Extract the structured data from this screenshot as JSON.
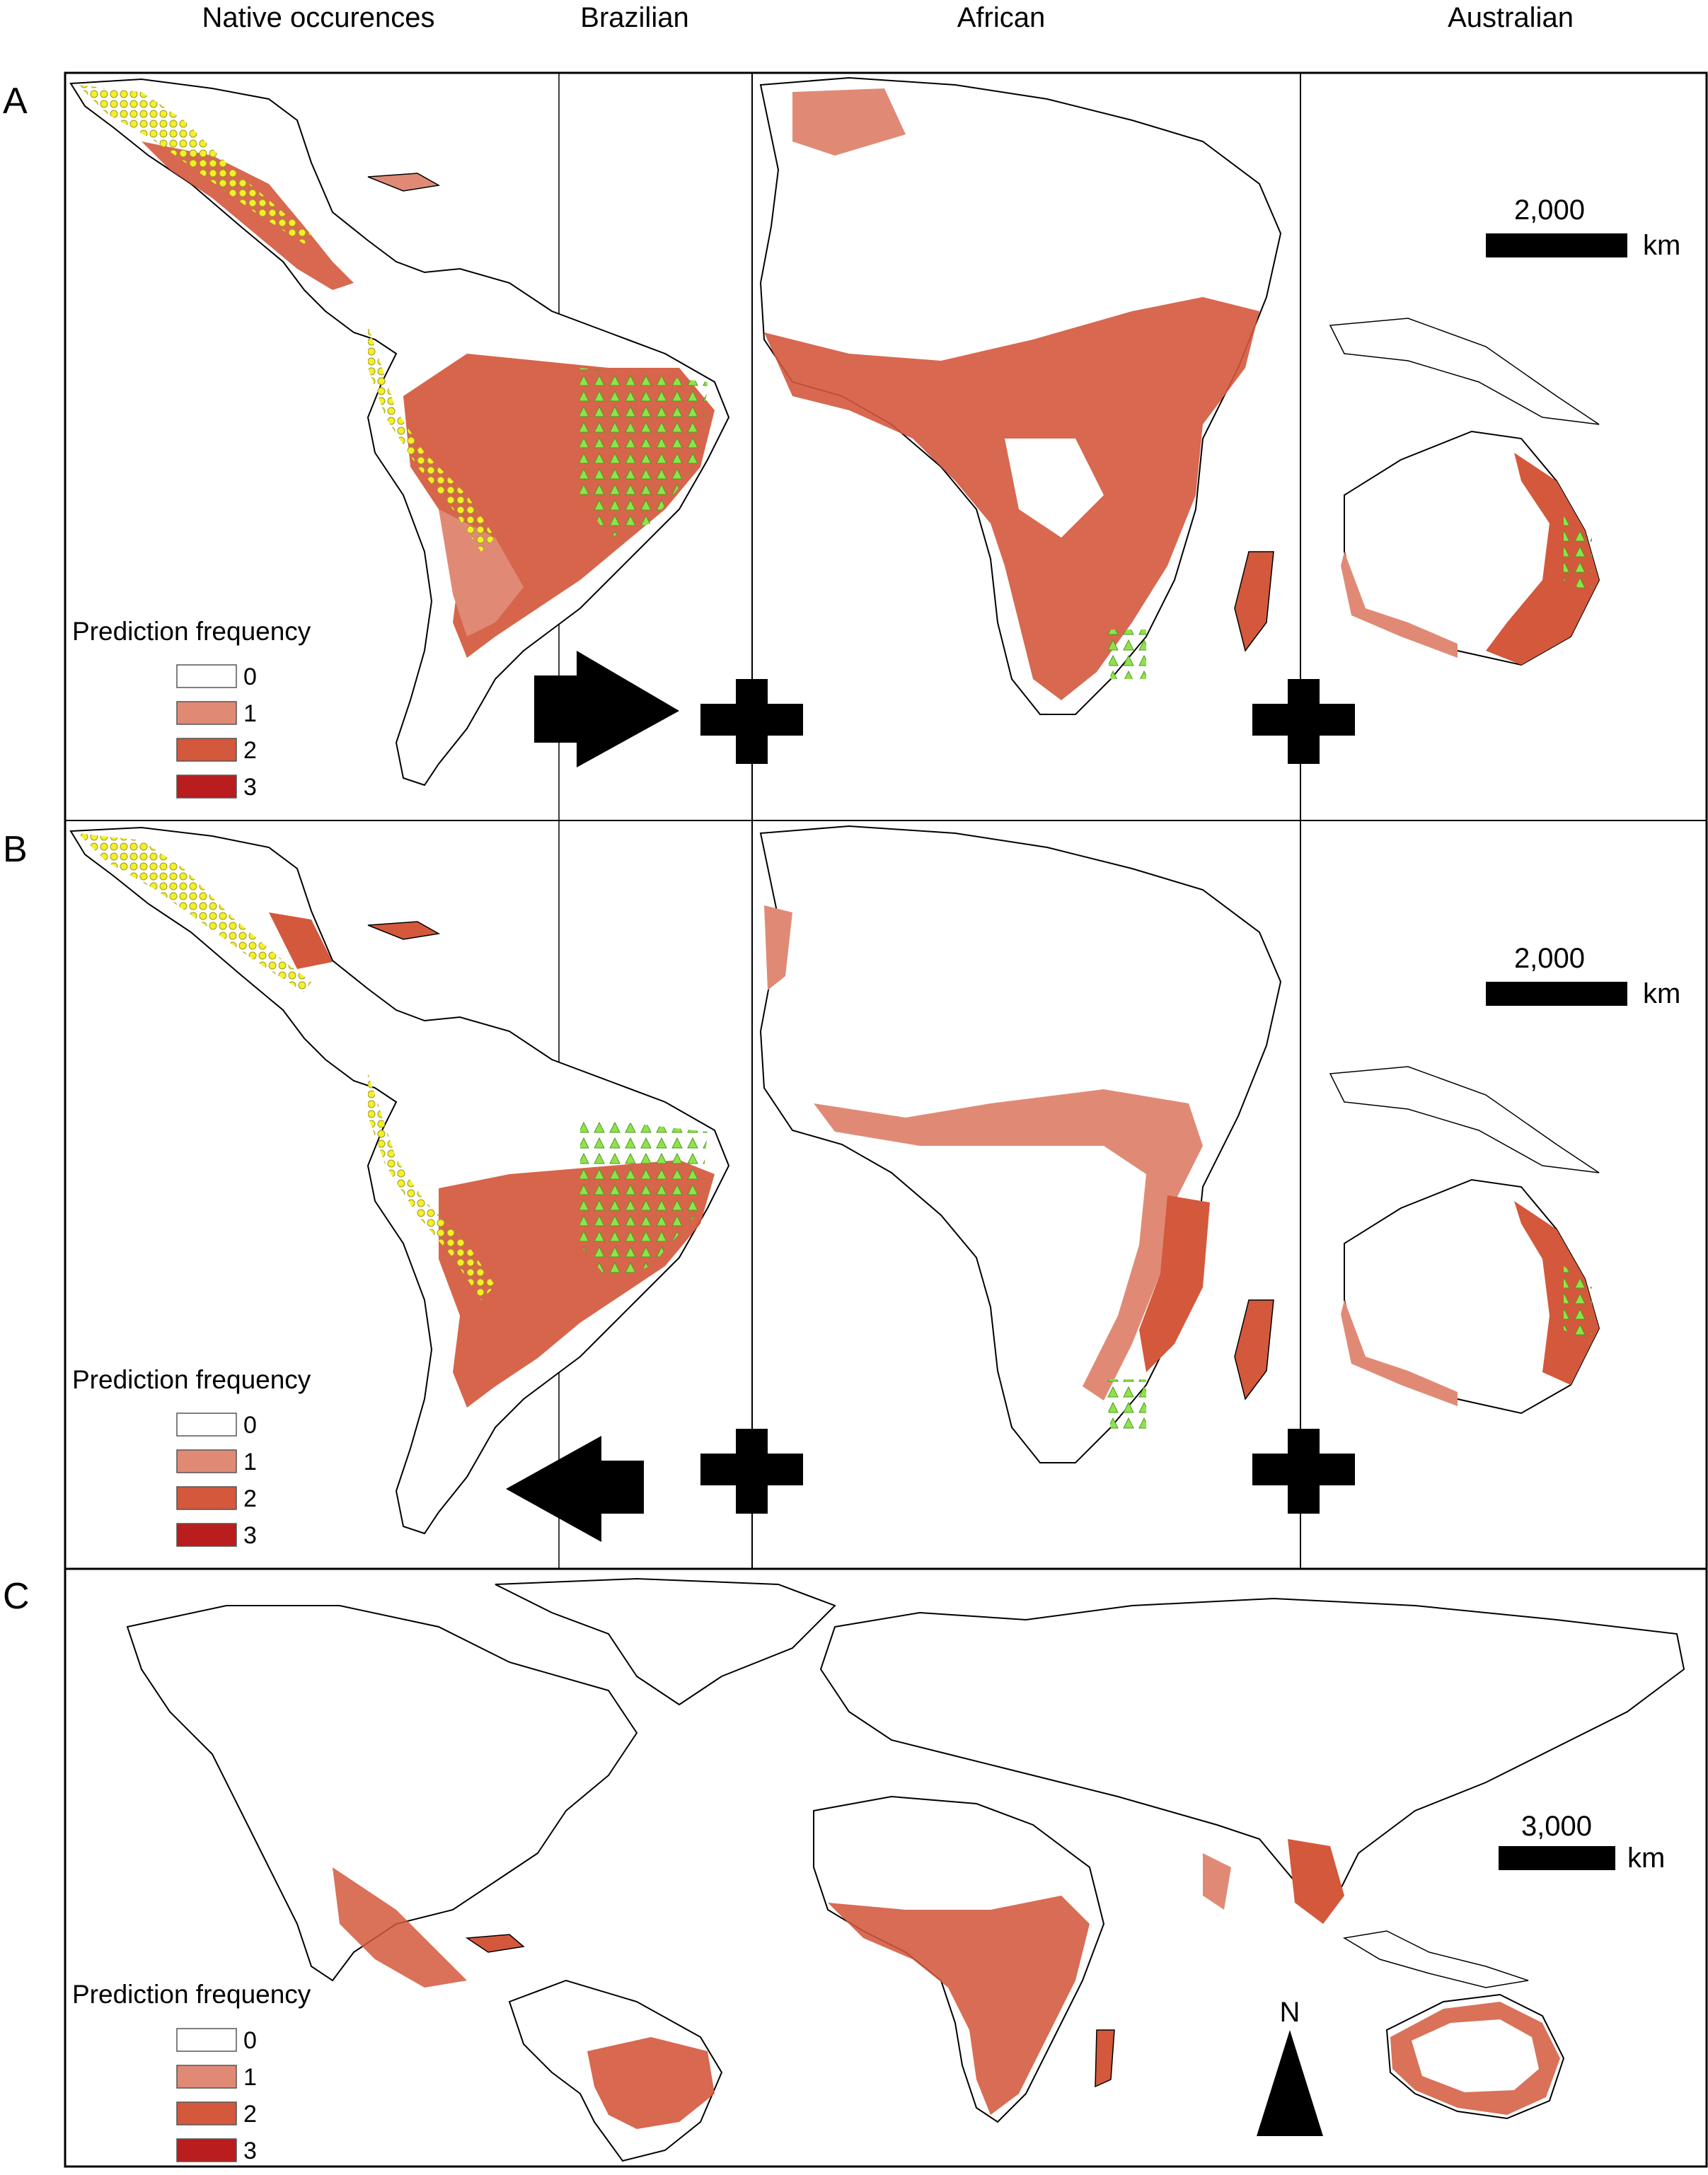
{
  "columns": {
    "native": "Native occurences",
    "brazilian": "Brazilian",
    "african": "African",
    "australian": "Australian"
  },
  "panels": [
    {
      "letter": "A",
      "scale_value": "2,000",
      "scale_unit": "km"
    },
    {
      "letter": "B",
      "scale_value": "2,000",
      "scale_unit": "km"
    },
    {
      "letter": "C",
      "scale_value": "3,000",
      "scale_unit": "km",
      "north": "N"
    }
  ],
  "legend": {
    "title": "Prediction frequency",
    "items": [
      {
        "label": "0",
        "color": "#ffffff"
      },
      {
        "label": "1",
        "color": "#e08a76"
      },
      {
        "label": "2",
        "color": "#d4583c"
      },
      {
        "label": "3",
        "color": "#b91d1d"
      }
    ]
  },
  "symbols": {
    "native_point_color": "#f5ef2a",
    "introduced_point_color": "#8fe34a"
  }
}
